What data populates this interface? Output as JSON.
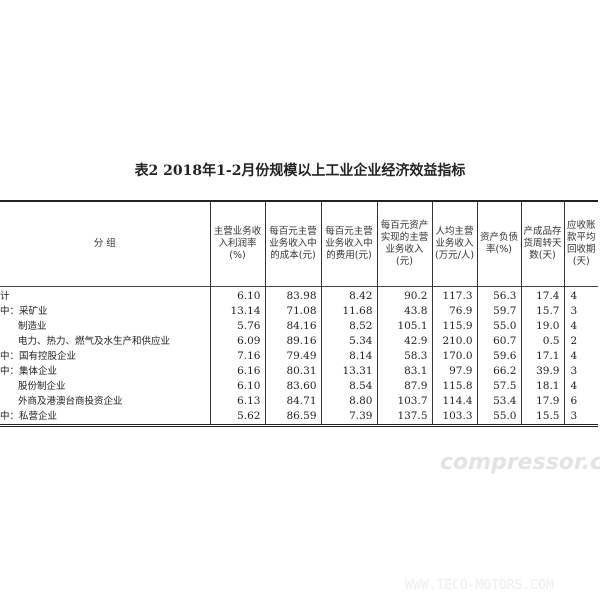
{
  "title": "表2  2018年1-2月份规模以上工业企业经济效益指标",
  "headers": {
    "group": "分  组",
    "cols": [
      "主营业务收入利润率(%)",
      "每百元主营业务收入中的成本(元)",
      "每百元主营业务收入中的费用(元)",
      "每百元资产实现的主营业务收入(元)",
      "人均主营业务收入(万元/人)",
      "资产负债率(%)",
      "产成品存货周转天数(天)",
      "应收账款平均回收期(天)"
    ]
  },
  "rows": [
    {
      "label": "计",
      "indent": false,
      "values": [
        "6.10",
        "83.98",
        "8.42",
        "90.2",
        "117.3",
        "56.3",
        "17.4",
        "4"
      ]
    },
    {
      "label": "中：采矿业",
      "indent": false,
      "values": [
        "13.14",
        "71.08",
        "11.68",
        "43.8",
        "76.9",
        "59.7",
        "15.7",
        "3"
      ]
    },
    {
      "label": "制造业",
      "indent": true,
      "values": [
        "5.76",
        "84.16",
        "8.52",
        "105.1",
        "115.9",
        "55.0",
        "19.0",
        "4"
      ]
    },
    {
      "label": "电力、热力、燃气及水生产和供应业",
      "indent": true,
      "values": [
        "6.09",
        "89.16",
        "5.34",
        "42.9",
        "210.0",
        "60.7",
        "0.5",
        "2"
      ]
    },
    {
      "label": "中：国有控股企业",
      "indent": false,
      "values": [
        "7.16",
        "79.49",
        "8.14",
        "58.3",
        "170.0",
        "59.6",
        "17.1",
        "4"
      ]
    },
    {
      "label": "中：集体企业",
      "indent": false,
      "values": [
        "6.16",
        "80.31",
        "13.31",
        "83.1",
        "97.9",
        "66.2",
        "39.9",
        "3"
      ]
    },
    {
      "label": "股份制企业",
      "indent": true,
      "values": [
        "6.10",
        "83.60",
        "8.54",
        "87.9",
        "115.8",
        "57.5",
        "18.1",
        "4"
      ]
    },
    {
      "label": "外商及港澳台商投资企业",
      "indent": true,
      "values": [
        "6.13",
        "84.71",
        "8.80",
        "103.7",
        "114.4",
        "53.4",
        "17.9",
        "6"
      ]
    },
    {
      "label": "中：私营企业",
      "indent": false,
      "values": [
        "5.62",
        "86.59",
        "7.39",
        "137.5",
        "103.3",
        "55.0",
        "15.5",
        "3"
      ]
    }
  ],
  "watermarks": [
    "compressor.cn",
    "WWW.TECO-MOTORS.COM"
  ]
}
